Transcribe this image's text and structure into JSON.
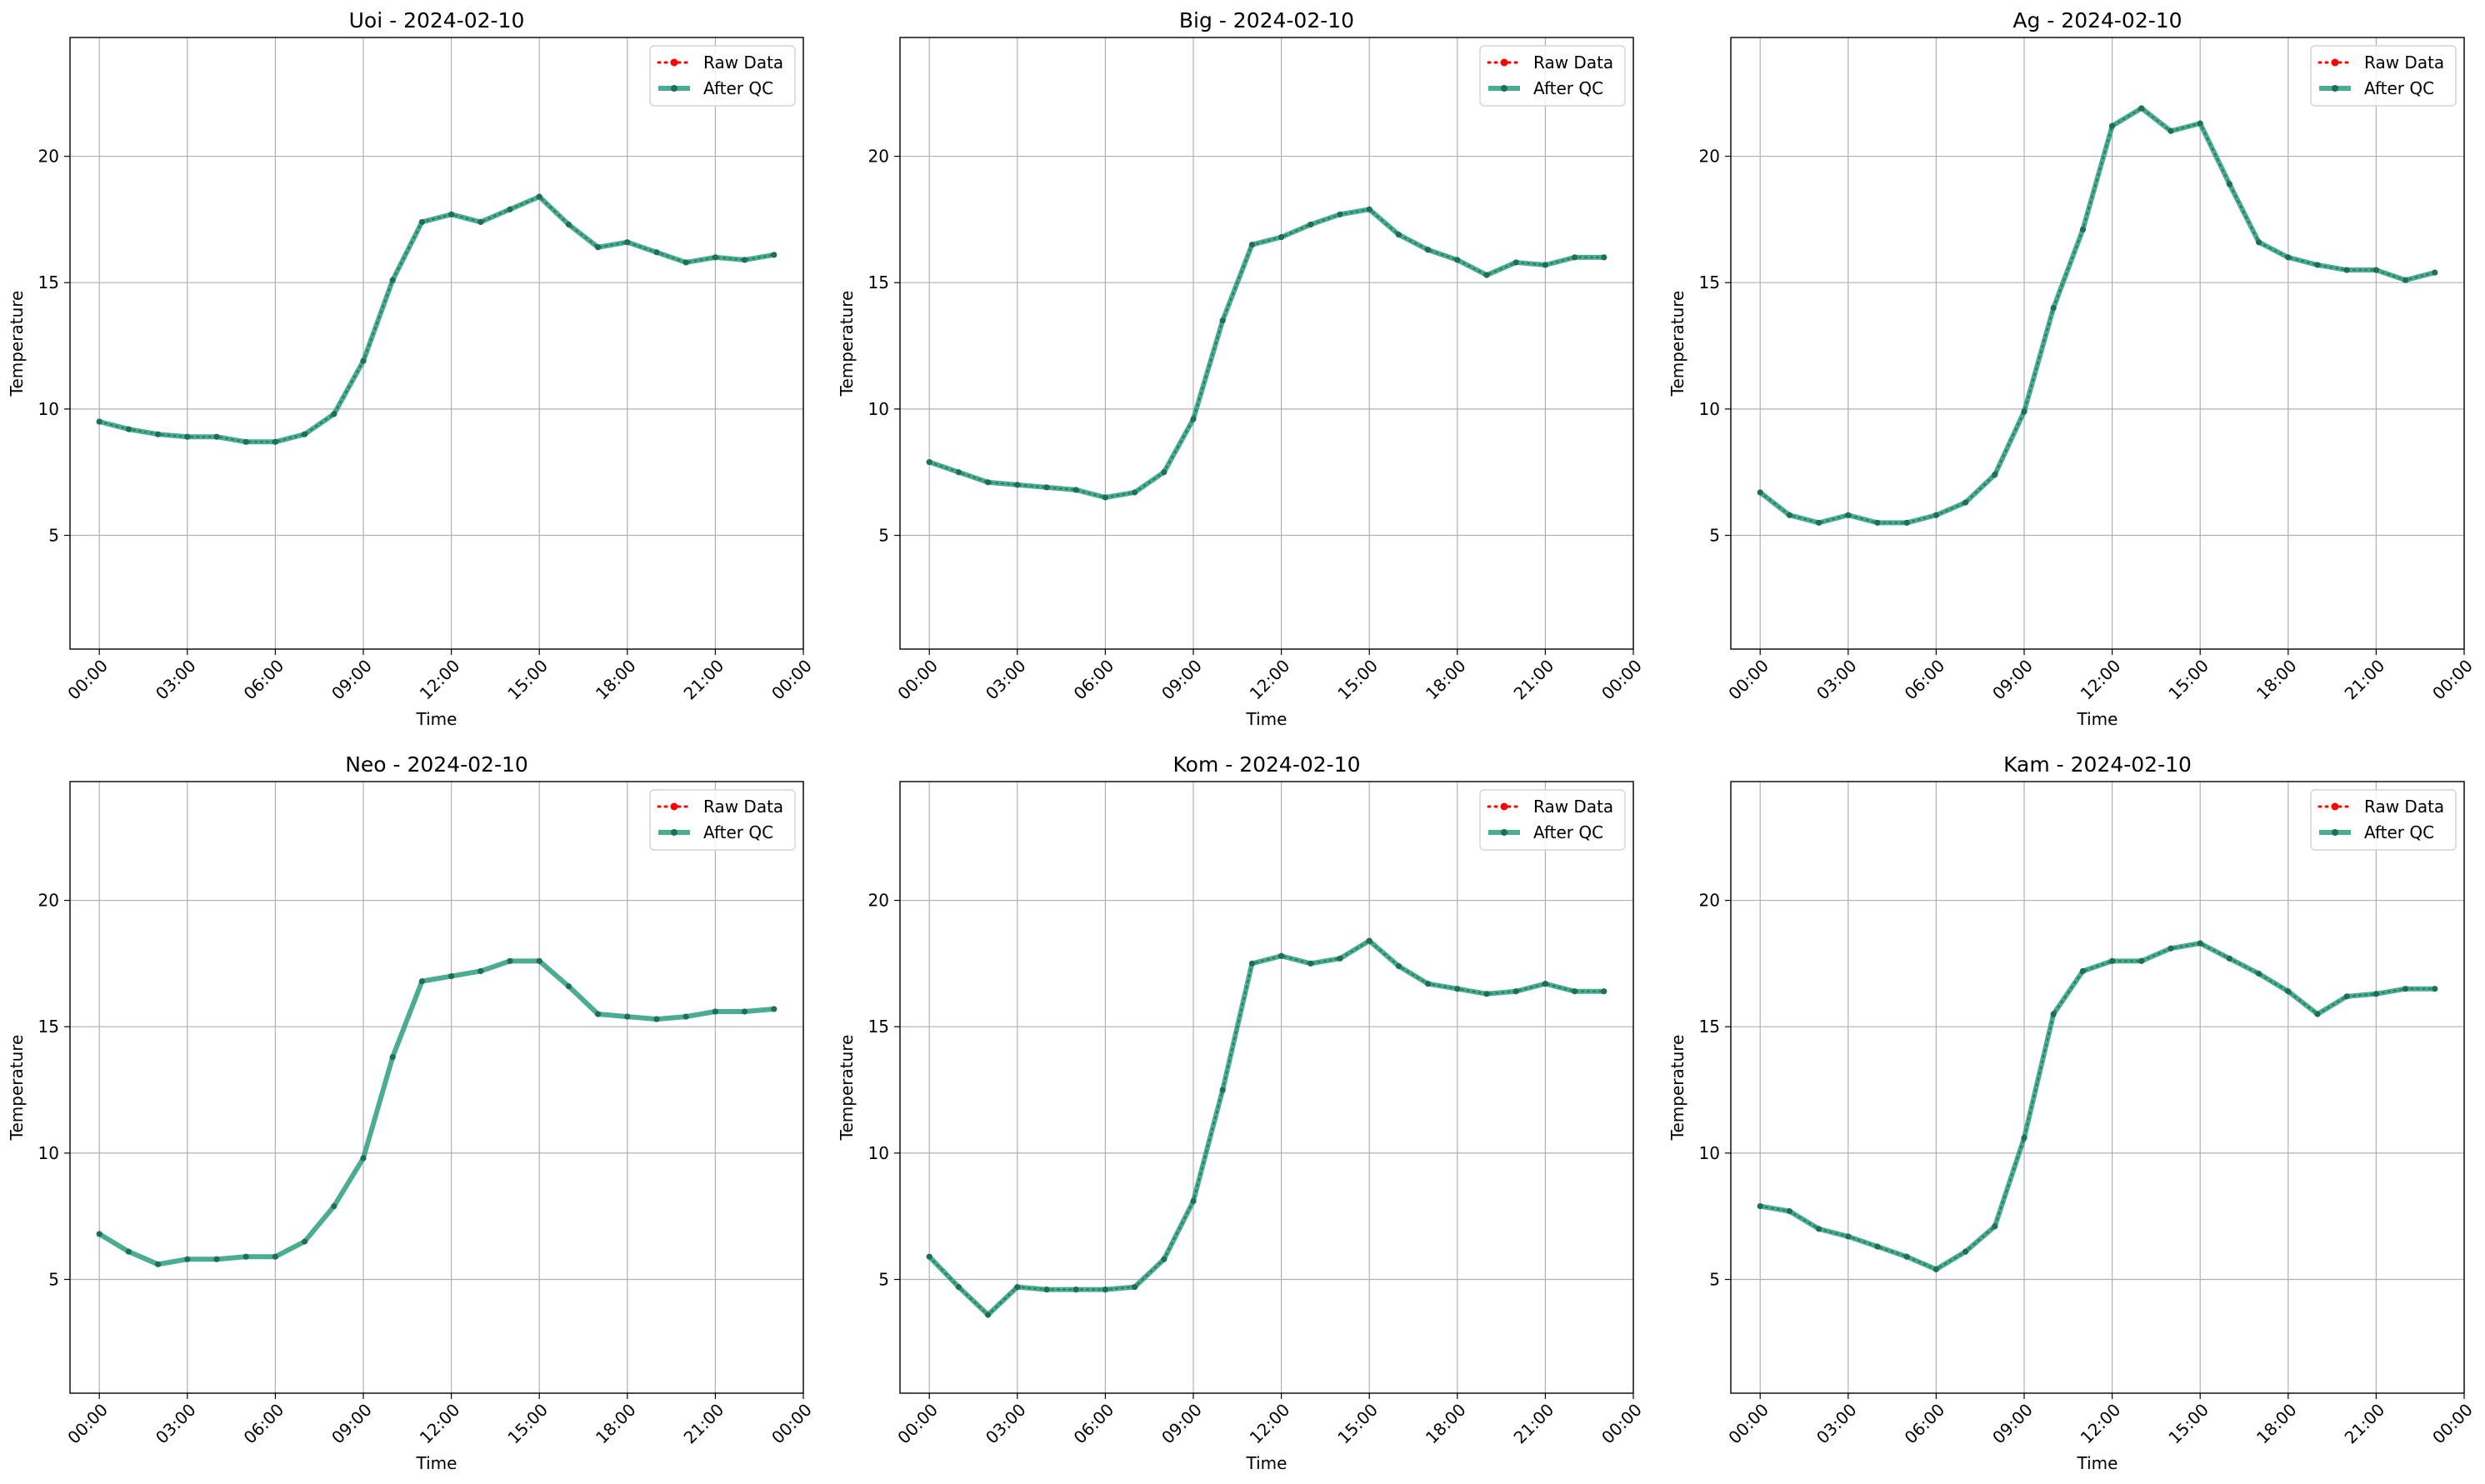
{
  "figure": {
    "legend_labels": [
      "Raw Data",
      "After QC"
    ],
    "colors": {
      "raw": "#ff0000",
      "qc": "#2a9d7c",
      "qc_marker": "#1f6e57",
      "grid": "#b0b0b0"
    }
  },
  "chart_data": [
    {
      "type": "line",
      "title": "Uoi - 2024-02-10",
      "xlabel": "Time",
      "ylabel": "Temperature",
      "x": [
        "00:00",
        "01:00",
        "02:00",
        "03:00",
        "04:00",
        "05:00",
        "06:00",
        "07:00",
        "08:00",
        "09:00",
        "10:00",
        "11:00",
        "12:00",
        "13:00",
        "14:00",
        "15:00",
        "16:00",
        "17:00",
        "18:00",
        "19:00",
        "20:00",
        "21:00",
        "22:00",
        "23:00"
      ],
      "xticks": [
        "00:00",
        "03:00",
        "06:00",
        "09:00",
        "12:00",
        "15:00",
        "18:00",
        "21:00",
        "00:00"
      ],
      "yticks": [
        5,
        10,
        15,
        20
      ],
      "ylim": [
        0.5,
        24.7
      ],
      "xlim": [
        "-1.0h",
        "24.0h"
      ],
      "grid": true,
      "legend": "top-right",
      "series": [
        {
          "name": "Raw Data",
          "values": [
            9.5,
            9.2,
            9.0,
            8.9,
            8.9,
            8.7,
            8.7,
            9.0,
            9.8,
            11.9,
            15.1,
            17.4,
            17.7,
            17.4,
            17.9,
            18.4,
            17.3,
            16.4,
            16.6,
            16.2,
            15.8,
            16.0,
            15.9,
            16.1
          ]
        },
        {
          "name": "After QC",
          "values": [
            9.5,
            9.2,
            9.0,
            8.9,
            8.9,
            8.7,
            8.7,
            9.0,
            9.8,
            11.9,
            15.1,
            17.4,
            17.7,
            17.4,
            17.9,
            18.4,
            17.3,
            16.4,
            16.6,
            16.2,
            15.8,
            16.0,
            15.9,
            16.1
          ]
        }
      ]
    },
    {
      "type": "line",
      "title": "Big - 2024-02-10",
      "xlabel": "Time",
      "ylabel": "Temperature",
      "x": [
        "00:00",
        "01:00",
        "02:00",
        "03:00",
        "04:00",
        "05:00",
        "06:00",
        "07:00",
        "08:00",
        "09:00",
        "10:00",
        "11:00",
        "12:00",
        "13:00",
        "14:00",
        "15:00",
        "16:00",
        "17:00",
        "18:00",
        "19:00",
        "20:00",
        "21:00",
        "22:00",
        "23:00"
      ],
      "xticks": [
        "00:00",
        "03:00",
        "06:00",
        "09:00",
        "12:00",
        "15:00",
        "18:00",
        "21:00",
        "00:00"
      ],
      "yticks": [
        5,
        10,
        15,
        20
      ],
      "ylim": [
        0.5,
        24.7
      ],
      "xlim": [
        "-1.0h",
        "24.0h"
      ],
      "grid": true,
      "legend": "top-right",
      "series": [
        {
          "name": "Raw Data",
          "values": [
            7.9,
            7.5,
            7.1,
            7.0,
            6.9,
            6.8,
            6.5,
            6.7,
            7.5,
            9.6,
            13.5,
            16.5,
            16.8,
            17.3,
            17.7,
            17.9,
            16.9,
            16.3,
            15.9,
            15.3,
            15.8,
            15.7,
            16.0,
            16.0
          ]
        },
        {
          "name": "After QC",
          "values": [
            7.9,
            7.5,
            7.1,
            7.0,
            6.9,
            6.8,
            6.5,
            6.7,
            7.5,
            9.6,
            13.5,
            16.5,
            16.8,
            17.3,
            17.7,
            17.9,
            16.9,
            16.3,
            15.9,
            15.3,
            15.8,
            15.7,
            16.0,
            16.0
          ]
        }
      ]
    },
    {
      "type": "line",
      "title": "Ag - 2024-02-10",
      "xlabel": "Time",
      "ylabel": "Temperature",
      "x": [
        "00:00",
        "01:00",
        "02:00",
        "03:00",
        "04:00",
        "05:00",
        "06:00",
        "07:00",
        "08:00",
        "09:00",
        "10:00",
        "11:00",
        "12:00",
        "13:00",
        "14:00",
        "15:00",
        "16:00",
        "17:00",
        "18:00",
        "19:00",
        "20:00",
        "21:00",
        "22:00",
        "23:00"
      ],
      "xticks": [
        "00:00",
        "03:00",
        "06:00",
        "09:00",
        "12:00",
        "15:00",
        "18:00",
        "21:00",
        "00:00"
      ],
      "yticks": [
        5,
        10,
        15,
        20
      ],
      "ylim": [
        0.5,
        24.7
      ],
      "xlim": [
        "-1.0h",
        "24.0h"
      ],
      "grid": true,
      "legend": "top-right",
      "series": [
        {
          "name": "Raw Data",
          "values": [
            6.7,
            5.8,
            5.5,
            5.8,
            5.5,
            5.5,
            5.8,
            6.3,
            7.4,
            9.9,
            14.0,
            17.1,
            21.2,
            21.9,
            21.0,
            21.3,
            18.9,
            16.6,
            16.0,
            15.7,
            15.5,
            15.5,
            15.1,
            15.4
          ]
        },
        {
          "name": "After QC",
          "values": [
            6.7,
            5.8,
            5.5,
            5.8,
            5.5,
            5.5,
            5.8,
            6.3,
            7.4,
            9.9,
            14.0,
            17.1,
            21.2,
            21.9,
            21.0,
            21.3,
            18.9,
            16.6,
            16.0,
            15.7,
            15.5,
            15.5,
            15.1,
            15.4
          ]
        }
      ]
    },
    {
      "type": "line",
      "title": "Neo - 2024-02-10",
      "xlabel": "Time",
      "ylabel": "Temperature",
      "x": [
        "00:00",
        "01:00",
        "02:00",
        "03:00",
        "04:00",
        "05:00",
        "06:00",
        "07:00",
        "08:00",
        "09:00",
        "10:00",
        "11:00",
        "12:00",
        "13:00",
        "14:00",
        "15:00",
        "16:00",
        "17:00",
        "18:00",
        "19:00",
        "20:00",
        "21:00",
        "22:00",
        "23:00"
      ],
      "xticks": [
        "00:00",
        "03:00",
        "06:00",
        "09:00",
        "12:00",
        "15:00",
        "18:00",
        "21:00",
        "00:00"
      ],
      "yticks": [
        5,
        10,
        15,
        20
      ],
      "ylim": [
        0.5,
        24.7
      ],
      "xlim": [
        "-1.0h",
        "24.0h"
      ],
      "grid": true,
      "legend": "top-right",
      "series": [
        {
          "name": "Raw Data",
          "values": [
            6.8,
            6.1,
            5.6,
            5.8,
            5.8,
            5.9,
            5.9,
            6.5,
            7.9,
            9.8,
            13.8,
            16.8,
            17.0,
            17.2,
            17.6,
            17.6,
            16.6,
            15.5,
            15.4,
            15.3,
            15.4,
            15.6,
            15.6,
            15.7
          ]
        },
        {
          "name": "After QC",
          "values": [
            6.8,
            6.1,
            5.6,
            5.8,
            5.8,
            5.9,
            5.9,
            6.5,
            7.9,
            9.8,
            13.8,
            16.8,
            17.0,
            17.2,
            17.6,
            17.6,
            16.6,
            15.5,
            15.4,
            15.3,
            15.4,
            15.6,
            15.6,
            15.7
          ]
        }
      ]
    },
    {
      "type": "line",
      "title": "Kom - 2024-02-10",
      "xlabel": "Time",
      "ylabel": "Temperature",
      "x": [
        "00:00",
        "01:00",
        "02:00",
        "03:00",
        "04:00",
        "05:00",
        "06:00",
        "07:00",
        "08:00",
        "09:00",
        "10:00",
        "11:00",
        "12:00",
        "13:00",
        "14:00",
        "15:00",
        "16:00",
        "17:00",
        "18:00",
        "19:00",
        "20:00",
        "21:00",
        "22:00",
        "23:00"
      ],
      "xticks": [
        "00:00",
        "03:00",
        "06:00",
        "09:00",
        "12:00",
        "15:00",
        "18:00",
        "21:00",
        "00:00"
      ],
      "yticks": [
        5,
        10,
        15,
        20
      ],
      "ylim": [
        0.5,
        24.7
      ],
      "xlim": [
        "-1.0h",
        "24.0h"
      ],
      "grid": true,
      "legend": "top-right",
      "series": [
        {
          "name": "Raw Data",
          "values": [
            5.9,
            4.7,
            3.6,
            4.7,
            4.6,
            4.6,
            4.6,
            4.7,
            5.8,
            8.1,
            12.5,
            17.5,
            17.8,
            17.5,
            17.7,
            18.4,
            17.4,
            16.7,
            16.5,
            16.3,
            16.4,
            16.7,
            16.4,
            16.4
          ]
        },
        {
          "name": "After QC",
          "values": [
            5.9,
            4.7,
            3.6,
            4.7,
            4.6,
            4.6,
            4.6,
            4.7,
            5.8,
            8.1,
            12.5,
            17.5,
            17.8,
            17.5,
            17.7,
            18.4,
            17.4,
            16.7,
            16.5,
            16.3,
            16.4,
            16.7,
            16.4,
            16.4
          ]
        }
      ]
    },
    {
      "type": "line",
      "title": "Kam - 2024-02-10",
      "xlabel": "Time",
      "ylabel": "Temperature",
      "x": [
        "00:00",
        "01:00",
        "02:00",
        "03:00",
        "04:00",
        "05:00",
        "06:00",
        "07:00",
        "08:00",
        "09:00",
        "10:00",
        "11:00",
        "12:00",
        "13:00",
        "14:00",
        "15:00",
        "16:00",
        "17:00",
        "18:00",
        "19:00",
        "20:00",
        "21:00",
        "22:00",
        "23:00"
      ],
      "xticks": [
        "00:00",
        "03:00",
        "06:00",
        "09:00",
        "12:00",
        "15:00",
        "18:00",
        "21:00",
        "00:00"
      ],
      "yticks": [
        5,
        10,
        15,
        20
      ],
      "ylim": [
        0.5,
        24.7
      ],
      "xlim": [
        "-1.0h",
        "24.0h"
      ],
      "grid": true,
      "legend": "top-right",
      "series": [
        {
          "name": "Raw Data",
          "values": [
            7.9,
            7.7,
            7.0,
            6.7,
            6.3,
            5.9,
            5.4,
            6.1,
            7.1,
            10.6,
            15.5,
            17.2,
            17.6,
            17.6,
            18.1,
            18.3,
            17.7,
            17.1,
            16.4,
            15.5,
            16.2,
            16.3,
            16.5,
            16.5
          ]
        },
        {
          "name": "After QC",
          "values": [
            7.9,
            7.7,
            7.0,
            6.7,
            6.3,
            5.9,
            5.4,
            6.1,
            7.1,
            10.6,
            15.5,
            17.2,
            17.6,
            17.6,
            18.1,
            18.3,
            17.7,
            17.1,
            16.4,
            15.5,
            16.2,
            16.3,
            16.5,
            16.5
          ]
        }
      ]
    }
  ]
}
